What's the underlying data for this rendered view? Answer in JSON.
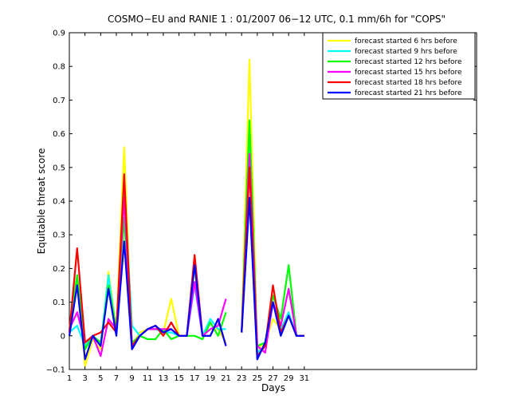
{
  "chart_data": {
    "type": "line",
    "title": "COSMO−EU and RANIE 1 : 01/2007 06−12 UTC, 0.1 mm/6h for \"COPS\"",
    "xlabel": "Days",
    "ylabel": "Equitable threat score",
    "xlim": [
      1,
      53
    ],
    "ylim": [
      -0.1,
      0.9
    ],
    "x_ticks": [
      1,
      3,
      5,
      7,
      9,
      11,
      13,
      15,
      17,
      19,
      21,
      23,
      25,
      27,
      29,
      31
    ],
    "x_tick_labels": [
      "1",
      "3",
      "5",
      "7",
      "9",
      "11",
      "13",
      "15",
      "17",
      "19",
      "21",
      "23",
      "25",
      "27",
      "29",
      "31"
    ],
    "y_ticks": [
      -0.1,
      0,
      0.1,
      0.2,
      0.3,
      0.4,
      0.5,
      0.6,
      0.7,
      0.8,
      0.9
    ],
    "y_tick_labels": [
      "−0.1",
      "0",
      "0.1",
      "0.2",
      "0.3",
      "0.4",
      "0.5",
      "0.6",
      "0.7",
      "0.8",
      "0.9"
    ],
    "grid": false,
    "legend_position": "top-right",
    "series": [
      {
        "name": "forecast started 6 hrs before",
        "color": "#ffff00",
        "segments": [
          {
            "x": [
              1,
              2,
              3,
              4,
              5,
              6,
              7,
              8,
              9,
              10,
              11,
              12,
              13,
              14,
              15,
              16,
              17,
              18,
              19,
              20,
              21
            ],
            "y": [
              0.02,
              0.17,
              -0.09,
              -0.01,
              -0.04,
              0.19,
              0.02,
              0.56,
              -0.03,
              0.01,
              0.02,
              0.03,
              0.01,
              0.11,
              0.0,
              0.0,
              0.2,
              0.0,
              0.02,
              0.02,
              -0.02
            ]
          },
          {
            "x": [
              23,
              24,
              25,
              26,
              27,
              28,
              29,
              30,
              31
            ],
            "y": [
              0.01,
              0.82,
              -0.04,
              -0.02,
              0.05,
              0.02,
              0.06,
              0.0,
              0.0
            ]
          }
        ]
      },
      {
        "name": "forecast started 9 hrs before",
        "color": "#00ffff",
        "segments": [
          {
            "x": [
              1,
              2,
              3,
              4,
              5,
              6,
              7,
              8,
              9,
              10,
              11,
              12,
              13,
              14,
              15,
              16,
              17,
              18,
              19,
              20,
              21
            ],
            "y": [
              0.01,
              0.03,
              -0.03,
              0.0,
              -0.03,
              0.18,
              0.01,
              0.45,
              0.03,
              0.0,
              0.02,
              0.02,
              0.01,
              0.01,
              0.0,
              0.0,
              0.15,
              0.0,
              0.05,
              0.02,
              0.02
            ]
          },
          {
            "x": [
              23,
              24,
              25,
              26,
              27,
              28,
              29,
              30,
              31
            ],
            "y": [
              0.01,
              0.62,
              -0.05,
              -0.03,
              0.1,
              0.02,
              0.07,
              0.0,
              0.0
            ]
          }
        ]
      },
      {
        "name": "forecast started 12 hrs before",
        "color": "#00ff00",
        "segments": [
          {
            "x": [
              1,
              2,
              3,
              4,
              5,
              6,
              7,
              8,
              9,
              10,
              11,
              12,
              13,
              14,
              15,
              16,
              17,
              18,
              19,
              20,
              21
            ],
            "y": [
              0.02,
              0.18,
              -0.04,
              0.0,
              -0.02,
              0.15,
              0.02,
              0.35,
              -0.02,
              0.0,
              -0.01,
              -0.01,
              0.02,
              -0.01,
              0.0,
              0.0,
              0.0,
              -0.01,
              0.04,
              0.0,
              0.07
            ]
          },
          {
            "x": [
              23,
              24,
              25,
              26,
              27,
              28,
              29,
              30,
              31
            ],
            "y": [
              0.01,
              0.64,
              -0.03,
              -0.02,
              0.12,
              0.05,
              0.21,
              0.0,
              0.0
            ]
          }
        ]
      },
      {
        "name": "forecast started 15 hrs before",
        "color": "#ff00ff",
        "segments": [
          {
            "x": [
              1,
              2,
              3,
              4,
              5,
              6,
              7,
              8,
              9,
              10,
              11,
              12,
              13,
              14,
              15,
              16,
              17,
              18,
              19,
              20,
              21
            ],
            "y": [
              0.02,
              0.07,
              -0.02,
              0.0,
              -0.06,
              0.05,
              0.02,
              0.41,
              -0.03,
              0.0,
              0.02,
              0.02,
              0.02,
              0.02,
              0.0,
              0.0,
              0.16,
              0.0,
              0.02,
              0.03,
              0.11
            ]
          },
          {
            "x": [
              23,
              24,
              25,
              26,
              27,
              28,
              29,
              30,
              31
            ],
            "y": [
              0.01,
              0.54,
              -0.03,
              -0.05,
              0.1,
              0.03,
              0.14,
              0.0,
              0.0
            ]
          }
        ]
      },
      {
        "name": "forecast started 18 hrs before",
        "color": "#ff0000",
        "segments": [
          {
            "x": [
              1,
              2,
              3,
              4,
              5,
              6,
              7,
              8,
              9,
              10,
              11,
              12,
              13,
              14,
              15,
              16,
              17,
              18,
              19,
              20,
              21
            ],
            "y": [
              0.01,
              0.26,
              -0.02,
              0.0,
              0.01,
              0.04,
              0.01,
              0.48,
              -0.03,
              0.0,
              0.02,
              0.03,
              0.0,
              0.04,
              0.0,
              0.0,
              0.24,
              0.0,
              0.0,
              0.05,
              -0.03
            ]
          },
          {
            "x": [
              23,
              24,
              25,
              26,
              27,
              28,
              29,
              30,
              31
            ],
            "y": [
              0.01,
              0.5,
              -0.06,
              -0.03,
              0.15,
              0.01,
              0.06,
              0.0,
              0.0
            ]
          }
        ]
      },
      {
        "name": "forecast started 21 hrs before",
        "color": "#0000ff",
        "segments": [
          {
            "x": [
              1,
              2,
              3,
              4,
              5,
              6,
              7,
              8,
              9,
              10,
              11,
              12,
              13,
              14,
              15,
              16,
              17,
              18,
              19,
              20,
              21
            ],
            "y": [
              0.0,
              0.15,
              -0.07,
              0.0,
              -0.03,
              0.14,
              0.0,
              0.28,
              -0.04,
              0.0,
              0.02,
              0.03,
              0.01,
              0.02,
              0.0,
              0.0,
              0.21,
              0.0,
              0.0,
              0.05,
              -0.03
            ]
          },
          {
            "x": [
              23,
              24,
              25,
              26,
              27,
              28,
              29,
              30,
              31
            ],
            "y": [
              0.01,
              0.41,
              -0.07,
              -0.02,
              0.1,
              0.0,
              0.06,
              0.0,
              0.0
            ]
          }
        ]
      }
    ]
  }
}
